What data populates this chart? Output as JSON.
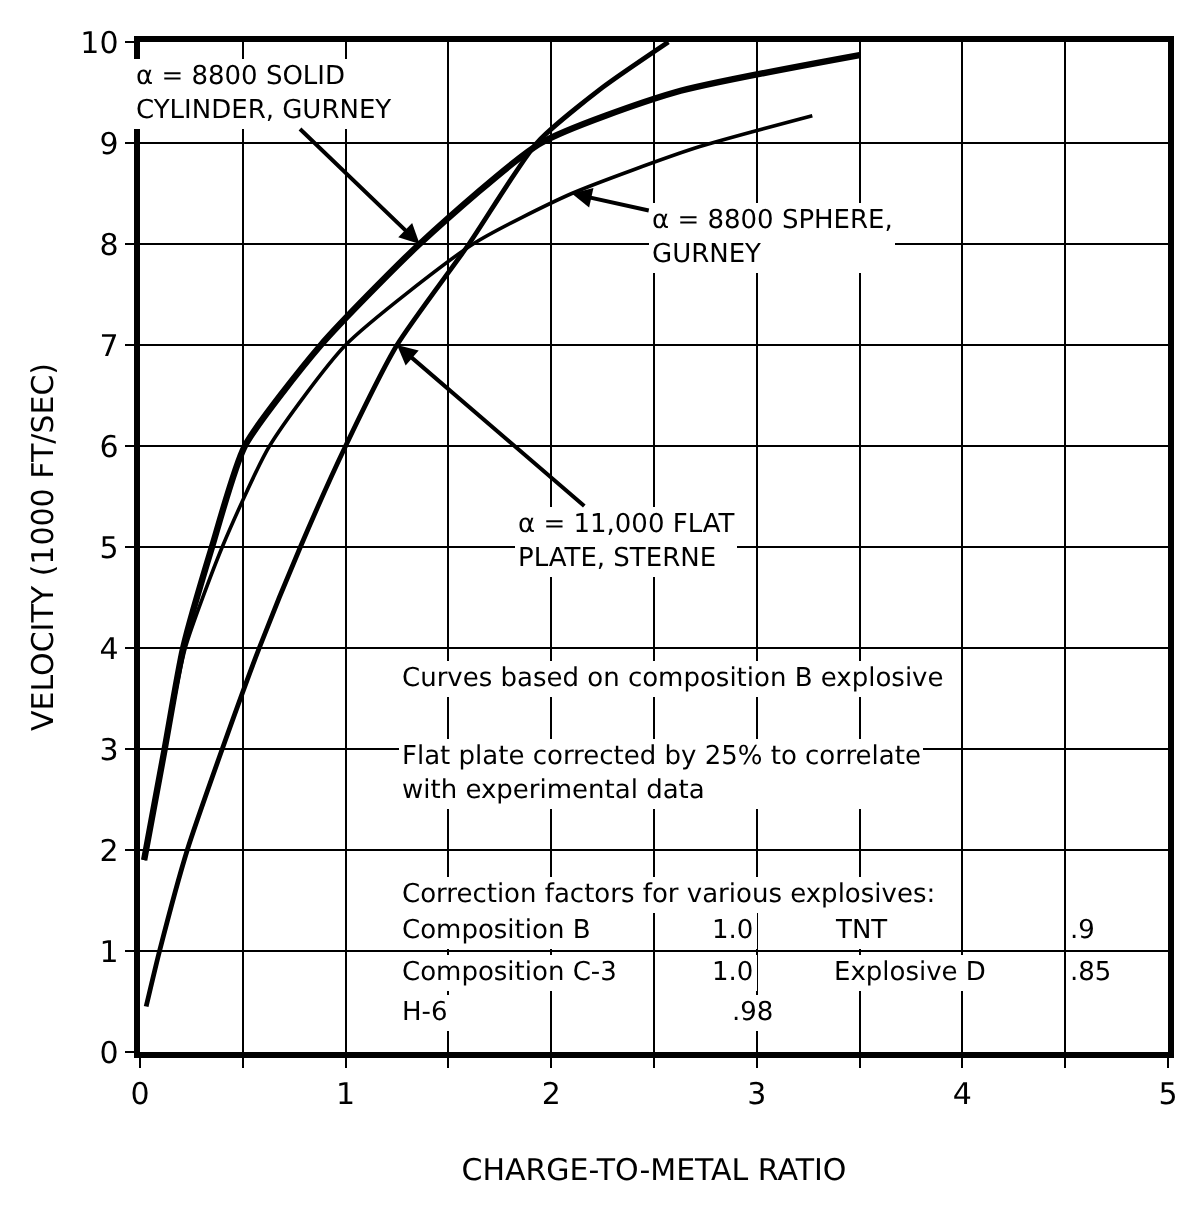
{
  "chart_data": {
    "type": "line",
    "xlabel": "CHARGE-TO-METAL RATIO",
    "ylabel": "VELOCITY (1000 FT/SEC)",
    "xlim": [
      0,
      5
    ],
    "ylim": [
      0,
      10
    ],
    "xticks": [
      0,
      {
        "value": 0.5,
        "label": null
      },
      1,
      {
        "value": 1.5,
        "label": null
      },
      2,
      {
        "value": 2.5,
        "label": null
      },
      3,
      {
        "value": 3.5,
        "label": null
      },
      4,
      {
        "value": 4.5,
        "label": null
      },
      5
    ],
    "yticks": [
      0,
      1,
      2,
      3,
      4,
      5,
      6,
      7,
      8,
      9,
      10
    ],
    "grid": true,
    "marker": "none",
    "line_style": "solid",
    "series": [
      {
        "color": "#000000",
        "x": [
          0.02,
          0.12,
          0.21,
          0.35,
          0.51,
          0.88,
          1.36,
          1.95,
          2.6,
          3.5
        ],
        "values": [
          1.9,
          3.0,
          4.0,
          5.0,
          6.0,
          7.0,
          8.0,
          9.0,
          9.5,
          9.87
        ]
      },
      {
        "color": "#000000",
        "x": [
          0.02,
          0.12,
          0.22,
          0.4,
          0.63,
          1.0,
          1.62,
          2.1,
          2.7,
          3.27
        ],
        "values": [
          1.9,
          3.0,
          4.0,
          5.0,
          6.0,
          7.0,
          8.0,
          8.5,
          8.95,
          9.27
        ]
      },
      {
        "color": "#000000",
        "x": [
          0.03,
          0.095,
          0.23,
          0.4,
          0.58,
          0.78,
          1.0,
          1.25,
          1.6,
          1.93,
          2.25,
          2.57
        ],
        "values": [
          0.45,
          1.0,
          2.0,
          3.0,
          4.0,
          5.0,
          6.0,
          7.0,
          8.0,
          9.0,
          9.55,
          10.0
        ]
      }
    ],
    "annotations": [
      {
        "text": "α = 8800 SOLID\nCYLINDER, GURNEY",
        "x": 1.36,
        "y": 8.0
      },
      {
        "text": "α = 8800 SPHERE,\nGURNEY",
        "x": 2.1,
        "y": 8.5
      },
      {
        "text": "α = 11,000 FLAT\nPLATE, STERNE",
        "x": 1.25,
        "y": 7.0
      },
      "Curves based on composition B explosive",
      "Flat plate corrected by 25% to correlate\nwith experimental data",
      "Correction factors for various explosives:",
      "Composition B",
      "1.0",
      "TNT",
      ".9",
      "Composition C-3",
      "1.0",
      "Explosive D",
      ".85",
      "H-6",
      ".98"
    ]
  }
}
